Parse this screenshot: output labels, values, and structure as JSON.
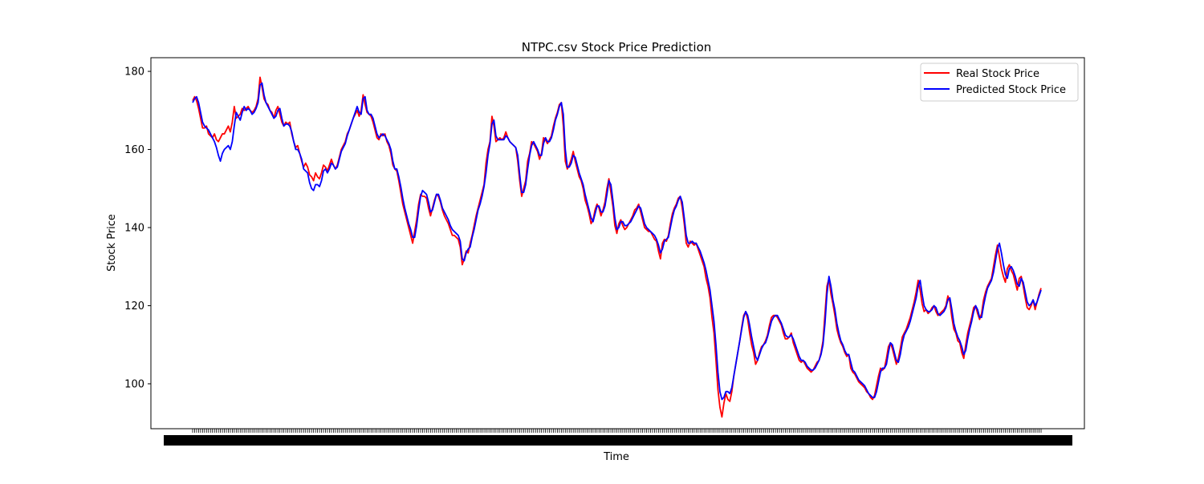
{
  "chart_data": {
    "type": "line",
    "title": "NTPC.csv Stock Price Prediction",
    "xlabel": "Time",
    "ylabel": "Stock Price",
    "ylim": [
      88.5,
      183.5
    ],
    "yticks": [
      100,
      120,
      140,
      160,
      180
    ],
    "xtick_labels_overlapping": true,
    "legend": {
      "placement": "top-right"
    },
    "grid": false,
    "series": [
      {
        "name": "Real Stock Price",
        "color": "#ff0000",
        "values": [
          172.5,
          173.5,
          172.5,
          170.5,
          168.0,
          165.5,
          165.5,
          166.0,
          164.0,
          163.5,
          163.0,
          164.0,
          162.5,
          162.0,
          163.0,
          164.0,
          164.0,
          165.0,
          166.0,
          164.5,
          167.0,
          171.0,
          168.0,
          168.5,
          169.0,
          170.5,
          170.0,
          170.5,
          171.0,
          170.0,
          169.5,
          170.0,
          171.0,
          173.0,
          178.5,
          176.0,
          173.0,
          172.0,
          171.5,
          170.0,
          169.5,
          168.0,
          170.0,
          171.0,
          169.0,
          167.0,
          166.0,
          167.0,
          166.5,
          167.0,
          164.0,
          162.0,
          160.5,
          161.0,
          159.0,
          157.0,
          155.5,
          156.5,
          155.5,
          153.5,
          153.0,
          152.0,
          154.0,
          153.0,
          152.5,
          154.0,
          156.0,
          155.5,
          154.5,
          156.0,
          157.5,
          156.0,
          155.0,
          156.0,
          158.0,
          160.0,
          161.0,
          162.0,
          164.0,
          165.0,
          166.5,
          168.0,
          169.0,
          170.0,
          168.5,
          170.0,
          174.0,
          171.5,
          169.5,
          169.0,
          168.5,
          167.0,
          165.0,
          163.0,
          162.5,
          164.0,
          163.5,
          164.0,
          162.0,
          161.0,
          159.0,
          156.0,
          155.0,
          154.5,
          152.0,
          149.0,
          146.0,
          144.0,
          142.0,
          140.0,
          138.0,
          136.0,
          139.0,
          142.0,
          146.0,
          148.5,
          148.0,
          148.0,
          147.5,
          145.0,
          143.0,
          145.0,
          147.0,
          148.5,
          148.0,
          146.5,
          144.5,
          143.0,
          142.0,
          141.0,
          139.5,
          138.0,
          138.0,
          137.5,
          137.0,
          135.0,
          130.5,
          132.0,
          134.0,
          133.5,
          136.0,
          138.0,
          140.5,
          143.0,
          145.0,
          147.0,
          149.0,
          151.0,
          156.5,
          160.0,
          162.0,
          168.5,
          166.0,
          162.0,
          162.5,
          163.0,
          162.5,
          163.0,
          164.5,
          163.0,
          162.0,
          161.5,
          161.0,
          160.5,
          157.0,
          152.0,
          148.0,
          150.0,
          152.0,
          157.0,
          159.0,
          162.0,
          161.5,
          160.5,
          159.5,
          157.5,
          159.0,
          163.0,
          162.5,
          161.5,
          162.5,
          163.5,
          166.0,
          168.0,
          169.5,
          171.5,
          172.0,
          166.0,
          157.0,
          155.0,
          156.0,
          157.5,
          159.5,
          157.0,
          155.0,
          153.0,
          152.0,
          150.0,
          147.0,
          145.5,
          143.5,
          141.0,
          142.0,
          144.5,
          146.0,
          145.0,
          143.0,
          144.5,
          146.5,
          150.0,
          152.5,
          149.0,
          145.5,
          140.5,
          138.5,
          141.0,
          142.0,
          140.5,
          139.5,
          140.0,
          141.0,
          142.0,
          143.0,
          144.5,
          145.0,
          146.0,
          144.0,
          142.0,
          140.0,
          139.5,
          139.0,
          139.0,
          138.0,
          137.0,
          136.5,
          134.0,
          132.0,
          136.0,
          137.0,
          136.5,
          138.0,
          141.0,
          143.5,
          145.0,
          146.0,
          147.5,
          148.0,
          145.0,
          141.0,
          136.0,
          135.0,
          136.5,
          136.0,
          135.5,
          136.0,
          134.5,
          133.0,
          131.5,
          130.0,
          127.0,
          125.0,
          122.0,
          117.0,
          113.0,
          106.0,
          98.5,
          94.0,
          91.5,
          95.0,
          97.5,
          96.0,
          95.5,
          98.0,
          102.0,
          105.0,
          108.0,
          111.0,
          114.5,
          117.5,
          118.5,
          116.5,
          113.0,
          110.0,
          108.0,
          105.0,
          106.0,
          108.0,
          109.5,
          110.0,
          111.0,
          112.5,
          115.0,
          117.0,
          117.5,
          117.5,
          117.0,
          116.0,
          115.0,
          113.0,
          111.5,
          111.5,
          112.0,
          113.0,
          110.5,
          109.0,
          107.5,
          106.0,
          105.5,
          106.0,
          105.0,
          104.0,
          103.5,
          103.0,
          103.5,
          104.5,
          105.5,
          106.0,
          108.0,
          111.0,
          118.0,
          125.0,
          127.0,
          123.0,
          120.5,
          117.5,
          114.0,
          112.0,
          110.5,
          109.5,
          108.0,
          107.0,
          107.5,
          104.0,
          103.0,
          102.5,
          101.5,
          100.5,
          100.0,
          99.5,
          99.0,
          98.0,
          97.5,
          96.5,
          96.0,
          97.0,
          99.5,
          102.0,
          104.0,
          103.5,
          104.0,
          106.5,
          109.5,
          110.5,
          109.0,
          107.0,
          105.0,
          106.5,
          109.0,
          112.0,
          113.0,
          114.0,
          115.5,
          117.0,
          119.0,
          121.0,
          123.5,
          126.5,
          124.0,
          120.5,
          118.5,
          119.0,
          118.0,
          118.5,
          119.5,
          120.0,
          118.5,
          117.5,
          118.0,
          118.5,
          119.0,
          120.0,
          122.5,
          121.0,
          117.0,
          114.0,
          113.0,
          111.0,
          110.5,
          108.0,
          106.5,
          110.0,
          113.0,
          115.0,
          117.0,
          119.5,
          120.0,
          118.0,
          116.5,
          118.0,
          121.5,
          123.5,
          125.0,
          126.0,
          127.0,
          130.0,
          133.0,
          135.5,
          132.5,
          129.5,
          127.5,
          126.0,
          129.5,
          130.5,
          129.0,
          128.0,
          126.0,
          124.0,
          127.0,
          127.5,
          125.0,
          122.0,
          119.5,
          119.0,
          120.0,
          121.5,
          119.0,
          121.0,
          123.0,
          124.5
        ],
        "legend_label": "Real Stock Price"
      },
      {
        "name": "Predicted Stock Price",
        "color": "#0000ff",
        "values": [
          172.0,
          173.0,
          173.5,
          172.0,
          169.5,
          167.0,
          166.0,
          165.5,
          165.0,
          164.0,
          163.0,
          162.0,
          160.5,
          158.5,
          157.0,
          159.0,
          160.0,
          160.5,
          161.0,
          160.0,
          162.0,
          166.0,
          169.5,
          168.5,
          167.5,
          169.5,
          171.0,
          170.0,
          170.5,
          170.0,
          169.0,
          169.5,
          170.5,
          172.0,
          176.5,
          177.0,
          174.0,
          172.0,
          171.0,
          170.0,
          169.0,
          168.0,
          168.5,
          170.0,
          170.5,
          168.0,
          166.0,
          166.5,
          166.5,
          166.0,
          164.5,
          162.0,
          160.0,
          160.0,
          159.0,
          157.5,
          155.0,
          154.5,
          154.0,
          151.5,
          150.0,
          149.5,
          151.0,
          151.0,
          150.5,
          152.0,
          154.5,
          155.0,
          154.0,
          155.0,
          156.5,
          156.0,
          155.0,
          155.5,
          157.5,
          159.5,
          160.5,
          161.5,
          163.5,
          165.0,
          166.5,
          168.0,
          169.5,
          171.0,
          169.5,
          169.0,
          173.0,
          173.5,
          170.0,
          169.0,
          169.0,
          168.0,
          166.0,
          164.0,
          163.0,
          163.5,
          164.0,
          163.5,
          162.5,
          161.5,
          160.0,
          157.0,
          155.0,
          155.0,
          153.0,
          150.5,
          147.5,
          145.0,
          143.0,
          141.0,
          139.5,
          137.5,
          137.5,
          140.5,
          144.5,
          148.0,
          149.5,
          149.0,
          148.5,
          146.5,
          144.0,
          144.5,
          146.5,
          148.5,
          148.5,
          147.0,
          145.0,
          144.0,
          143.0,
          142.0,
          140.5,
          139.5,
          139.0,
          138.5,
          138.0,
          136.5,
          132.0,
          131.5,
          133.5,
          134.5,
          135.0,
          137.5,
          139.5,
          142.0,
          144.5,
          146.0,
          148.0,
          150.5,
          154.0,
          158.5,
          161.5,
          166.5,
          167.5,
          163.5,
          162.5,
          162.5,
          162.5,
          162.5,
          163.5,
          163.0,
          162.0,
          161.5,
          161.0,
          160.5,
          158.5,
          153.5,
          149.0,
          149.0,
          151.0,
          155.0,
          158.5,
          161.0,
          162.0,
          161.0,
          160.0,
          158.5,
          158.5,
          161.5,
          163.0,
          162.0,
          162.0,
          163.0,
          165.0,
          167.5,
          169.0,
          171.0,
          172.0,
          169.0,
          160.0,
          155.5,
          155.5,
          156.5,
          158.5,
          158.0,
          156.0,
          154.0,
          152.5,
          151.0,
          148.5,
          146.5,
          144.5,
          142.5,
          141.5,
          143.5,
          145.5,
          145.5,
          144.0,
          144.0,
          145.5,
          148.5,
          152.0,
          151.0,
          147.0,
          142.5,
          139.5,
          140.0,
          141.5,
          141.5,
          140.5,
          140.5,
          141.0,
          141.5,
          142.5,
          143.5,
          144.5,
          145.5,
          145.0,
          143.0,
          141.0,
          140.0,
          139.5,
          139.0,
          138.5,
          138.0,
          137.0,
          135.5,
          133.5,
          134.5,
          136.5,
          137.0,
          137.5,
          140.0,
          142.5,
          144.5,
          145.5,
          147.0,
          148.0,
          146.5,
          142.5,
          138.0,
          136.0,
          136.0,
          136.5,
          136.0,
          136.0,
          135.0,
          134.0,
          132.5,
          131.0,
          129.0,
          126.5,
          124.0,
          120.0,
          116.0,
          110.0,
          103.0,
          98.0,
          96.0,
          96.5,
          98.0,
          98.0,
          97.5,
          99.0,
          102.0,
          105.0,
          108.0,
          111.0,
          114.0,
          117.0,
          118.5,
          117.5,
          115.0,
          112.0,
          109.5,
          107.0,
          106.0,
          107.5,
          109.0,
          110.0,
          110.5,
          112.0,
          114.0,
          116.0,
          117.0,
          117.5,
          117.5,
          116.5,
          115.5,
          114.0,
          112.5,
          112.0,
          112.0,
          112.5,
          111.5,
          110.0,
          108.5,
          107.0,
          106.0,
          106.0,
          105.5,
          104.5,
          104.0,
          103.5,
          103.5,
          104.0,
          105.0,
          106.0,
          107.5,
          110.0,
          115.5,
          123.0,
          127.5,
          125.0,
          121.5,
          119.0,
          115.5,
          113.0,
          111.0,
          110.0,
          108.5,
          107.5,
          107.5,
          105.5,
          103.5,
          103.0,
          102.0,
          101.0,
          100.5,
          100.0,
          99.5,
          98.5,
          97.5,
          97.0,
          96.5,
          96.5,
          98.0,
          100.5,
          103.0,
          104.0,
          104.0,
          105.0,
          108.0,
          110.5,
          110.0,
          108.0,
          106.0,
          105.5,
          107.5,
          110.5,
          112.5,
          113.5,
          114.5,
          116.0,
          118.0,
          120.0,
          122.0,
          125.0,
          126.5,
          123.0,
          120.0,
          119.0,
          118.5,
          118.5,
          119.0,
          120.0,
          119.5,
          118.0,
          117.5,
          118.0,
          118.5,
          119.5,
          121.5,
          122.0,
          119.0,
          115.5,
          113.5,
          112.0,
          111.0,
          109.5,
          107.5,
          108.5,
          111.5,
          114.0,
          116.0,
          118.5,
          120.0,
          119.0,
          117.0,
          117.0,
          120.0,
          122.5,
          124.5,
          125.5,
          126.5,
          128.5,
          131.5,
          134.5,
          136.0,
          133.5,
          130.5,
          128.0,
          127.0,
          129.5,
          130.0,
          129.0,
          127.5,
          125.5,
          125.0,
          127.0,
          126.0,
          123.5,
          121.0,
          120.0,
          120.5,
          121.5,
          120.0,
          121.0,
          122.5,
          124.0
        ],
        "legend_label": "Predicted Stock Price"
      }
    ]
  }
}
